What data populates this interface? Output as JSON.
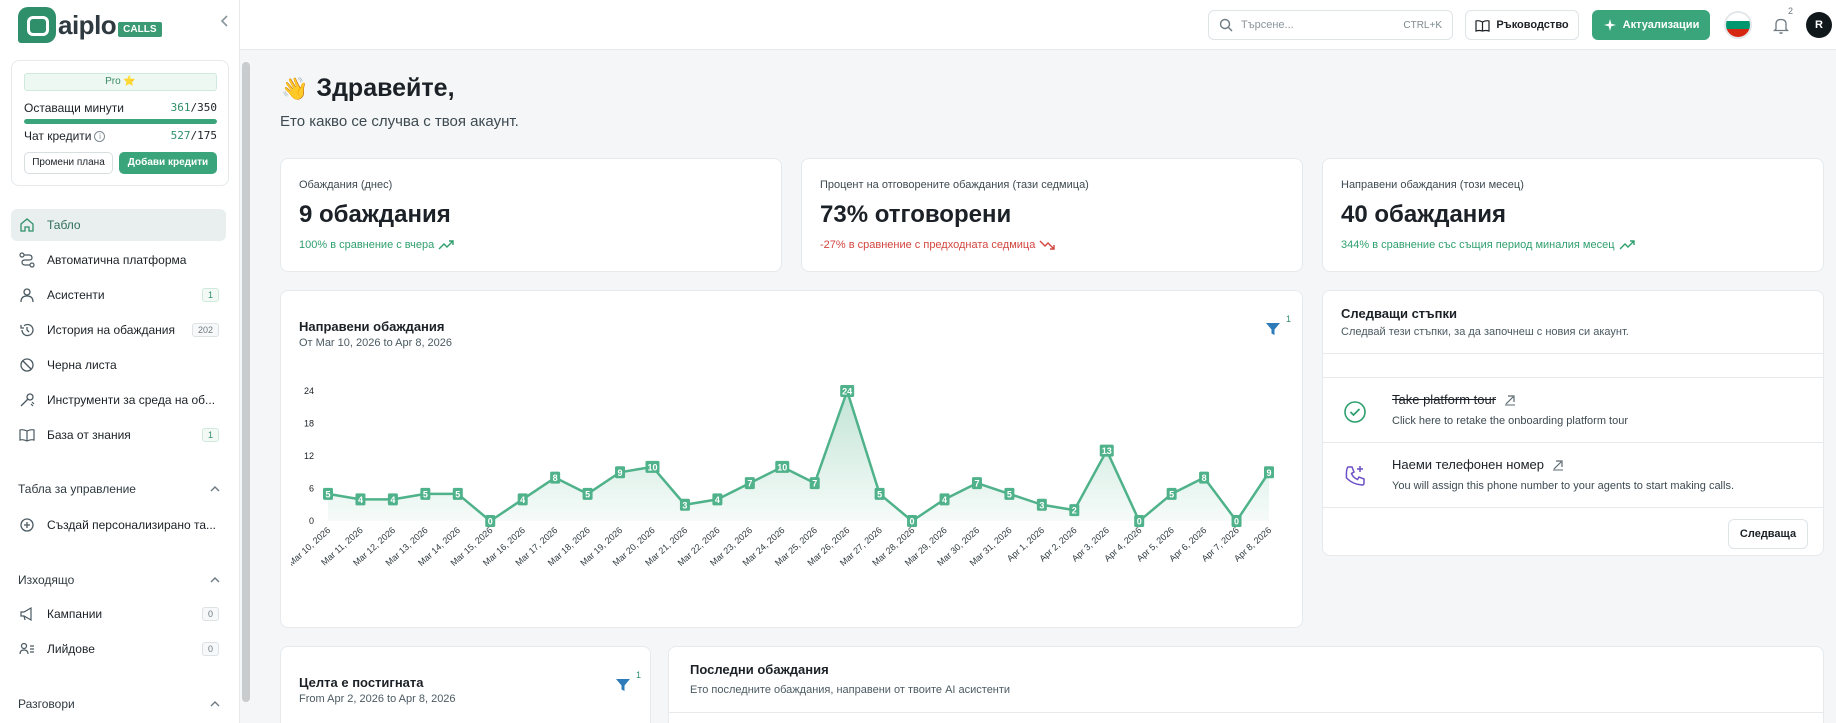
{
  "brand": {
    "word": "aiplo",
    "badge": "CALLS"
  },
  "plan": {
    "badge": "Pro ⭐",
    "minutes_label": "Оставащи минути",
    "minutes_used": "361",
    "minutes_total": "/350",
    "minutes_progress": 1.0,
    "credits_label": "Чат кредити",
    "credits_used": "527",
    "credits_total": "/175",
    "credits_progress": 1.0,
    "change_plan": "Промени плана",
    "add_credits": "Добави кредити"
  },
  "nav": {
    "items": [
      {
        "label": "Табло",
        "icon": "home-icon"
      },
      {
        "label": "Автоматична платформа",
        "icon": "workflow-icon"
      },
      {
        "label": "Асистенти",
        "icon": "user-icon",
        "count": "1"
      },
      {
        "label": "История на обаждания",
        "icon": "history-icon",
        "count": "202"
      },
      {
        "label": "Черна листа",
        "icon": "ban-icon"
      },
      {
        "label": "Инструменти за среда на об...",
        "icon": "tools-icon"
      },
      {
        "label": "База от знания",
        "icon": "book-icon",
        "count": "1"
      }
    ],
    "section_dashboards": "Табла за управление",
    "create_dashboard": "Създай персонализирано та...",
    "section_outbound": "Изходящо",
    "campaigns": "Кампании",
    "campaigns_count": "0",
    "leads": "Лийдове",
    "leads_count": "0",
    "section_conversations": "Разговори"
  },
  "topbar": {
    "search_placeholder": "Търсене...",
    "search_shortcut": "CTRL+K",
    "guide": "Ръководство",
    "updates": "Актуализации",
    "notifications_count": "2",
    "avatar_initial": "R"
  },
  "greeting": {
    "title": "Здравейте,",
    "subtitle": "Ето какво се случва с твоя акаунт."
  },
  "stats": [
    {
      "label": "Обаждания (днес)",
      "value": "9 обаждания",
      "trend": "100% в сравнение с вчера",
      "direction": "up"
    },
    {
      "label": "Процент на отговорените обаждания (тази седмица)",
      "value": "73% отговорени",
      "trend": "-27% в сравнение с предходната седмица",
      "direction": "down"
    },
    {
      "label": "Направени обаждания (този месец)",
      "value": "40 обаждания",
      "trend": "344% в сравнение със същия период миналия месец",
      "direction": "up"
    }
  ],
  "calls_chart": {
    "title": "Направени обаждания",
    "range": "От Mar 10, 2026 to Apr 8, 2026",
    "filter_count": "1"
  },
  "chart_data": {
    "type": "area",
    "title": "Направени обаждания",
    "x": [
      "Mar 10, 2026",
      "Mar 11, 2026",
      "Mar 12, 2026",
      "Mar 13, 2026",
      "Mar 14, 2026",
      "Mar 15, 2026",
      "Mar 16, 2026",
      "Mar 17, 2026",
      "Mar 18, 2026",
      "Mar 19, 2026",
      "Mar 20, 2026",
      "Mar 21, 2026",
      "Mar 22, 2026",
      "Mar 23, 2026",
      "Mar 24, 2026",
      "Mar 25, 2026",
      "Mar 26, 2026",
      "Mar 27, 2026",
      "Mar 28, 2026",
      "Mar 29, 2026",
      "Mar 30, 2026",
      "Mar 31, 2026",
      "Apr 1, 2026",
      "Apr 2, 2026",
      "Apr 3, 2026",
      "Apr 4, 2026",
      "Apr 5, 2026",
      "Apr 6, 2026",
      "Apr 7, 2026",
      "Apr 8, 2026"
    ],
    "values": [
      5,
      4,
      4,
      5,
      5,
      0,
      4,
      8,
      5,
      9,
      10,
      3,
      4,
      7,
      10,
      7,
      24,
      5,
      0,
      4,
      7,
      5,
      3,
      2,
      13,
      0,
      5,
      8,
      0,
      9
    ],
    "yticks": [
      0,
      6,
      12,
      18,
      24
    ],
    "ylim": [
      0,
      24
    ],
    "color": "#4fb28a"
  },
  "next_steps": {
    "title": "Следващи стъпки",
    "subtitle": "Следвай тези стъпки, за да започнеш с новия си акаунт.",
    "steps": [
      {
        "title": "Take platform tour",
        "desc": "Click here to retake the onboarding platform tour",
        "done": true
      },
      {
        "title": "Наеми телефонен номер",
        "desc": "You will assign this phone number to your agents to start making calls.",
        "done": false
      }
    ],
    "next_button": "Следваща"
  },
  "goal_card": {
    "title": "Целта е постигната",
    "range": "From Apr 2, 2026 to Apr 8, 2026",
    "filter_count": "1"
  },
  "recent_calls": {
    "title": "Последни обаждания",
    "subtitle": "Ето последните обаждания, направени от твоите AI асистенти"
  }
}
